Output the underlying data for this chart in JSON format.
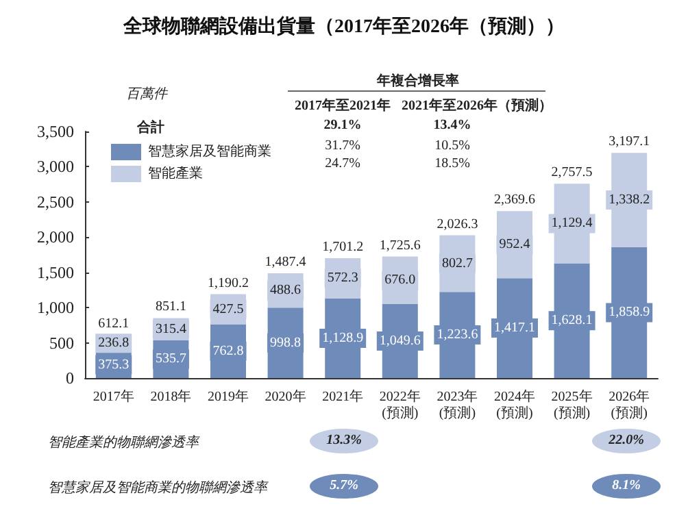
{
  "chart_data": {
    "type": "bar",
    "title": "全球物聯網設備出貨量（2017年至2026年（預測））",
    "ylabel": "百萬件",
    "categories": [
      "2017年",
      "2018年",
      "2019年",
      "2020年",
      "2021年",
      "2022年\n(預測)",
      "2023年\n(預測)",
      "2024年\n(預測)",
      "2025年\n(預測)",
      "2026年\n(預測)"
    ],
    "stacked": true,
    "series": [
      {
        "name": "智慧家居及智能商業",
        "color": "#6e8bba",
        "values": [
          375.3,
          535.7,
          762.8,
          998.8,
          1128.9,
          1049.6,
          1223.6,
          1417.1,
          1628.1,
          1858.9
        ],
        "value_labels": [
          "375.3",
          "535.7",
          "762.8",
          "998.8",
          "1,128.9",
          "1,049.6",
          "1,223.6",
          "1,417.1",
          "1,628.1",
          "1,858.9"
        ]
      },
      {
        "name": "智能產業",
        "color": "#c3cde3",
        "values": [
          236.8,
          315.4,
          427.5,
          488.6,
          572.3,
          676.0,
          802.7,
          952.4,
          1129.4,
          1338.2
        ],
        "value_labels": [
          "236.8",
          "315.4",
          "427.5",
          "488.6",
          "572.3",
          "676.0",
          "802.7",
          "952.4",
          "1,129.4",
          "1,338.2"
        ]
      }
    ],
    "totals": [
      "612.1",
      "851.1",
      "1,190.2",
      "1,487.4",
      "1,701.2",
      "1,725.6",
      "2,026.3",
      "2,369.6",
      "2,757.5",
      "3,197.1"
    ],
    "ylim": [
      0,
      3500
    ],
    "yticks": [
      {
        "value": 0,
        "label": "0"
      },
      {
        "value": 500,
        "label": "500"
      },
      {
        "value": 1000,
        "label": "1,000"
      },
      {
        "value": 1500,
        "label": "1,500"
      },
      {
        "value": 2000,
        "label": "2,000"
      },
      {
        "value": 2500,
        "label": "2,500"
      },
      {
        "value": 3000,
        "label": "3,000"
      },
      {
        "value": 3500,
        "label": "3,500"
      }
    ],
    "legend": "top left",
    "grid": false,
    "annotations": [
      "年複合增長率",
      "2017年至2021年",
      "2021年至2026年（預測）",
      "合計",
      "29.1%",
      "13.4%",
      "31.7%",
      "10.5%",
      "24.7%",
      "18.5%",
      "智能產業的物聯網滲透率",
      "13.3%",
      "22.0%",
      "智慧家居及智能商業的物聯網滲透率",
      "5.7%",
      "8.1%"
    ]
  }
}
